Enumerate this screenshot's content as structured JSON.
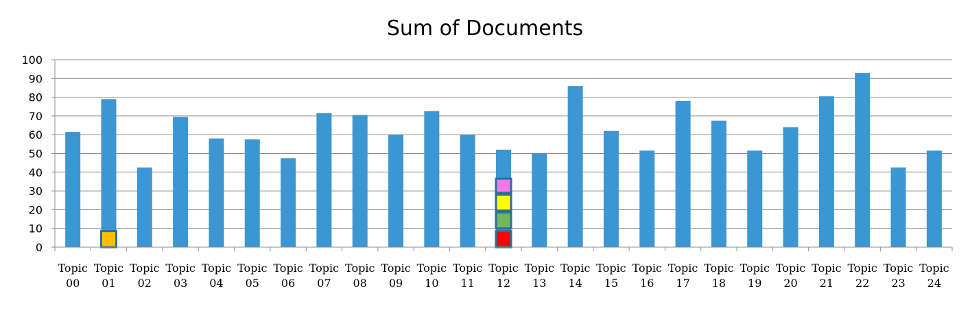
{
  "colors": {
    "bar": "#3C96D2",
    "grid": "#8C8C8C",
    "marker_border": "#2A6FA0"
  },
  "chart_data": {
    "type": "bar",
    "title": "Sum of Documents",
    "xlabel": "",
    "ylabel": "",
    "ylim": [
      0,
      100
    ],
    "yticks": [
      0,
      10,
      20,
      30,
      40,
      50,
      60,
      70,
      80,
      90,
      100
    ],
    "grid": true,
    "categories": [
      [
        "Topic",
        "00"
      ],
      [
        "Topic",
        "01"
      ],
      [
        "Topic",
        "02"
      ],
      [
        "Topic",
        "03"
      ],
      [
        "Topic",
        "04"
      ],
      [
        "Topic",
        "05"
      ],
      [
        "Topic",
        "06"
      ],
      [
        "Topic",
        "07"
      ],
      [
        "Topic",
        "08"
      ],
      [
        "Topic",
        "09"
      ],
      [
        "Topic",
        "10"
      ],
      [
        "Topic",
        "11"
      ],
      [
        "Topic",
        "12"
      ],
      [
        "Topic",
        "13"
      ],
      [
        "Topic",
        "14"
      ],
      [
        "Topic",
        "15"
      ],
      [
        "Topic",
        "16"
      ],
      [
        "Topic",
        "17"
      ],
      [
        "Topic",
        "18"
      ],
      [
        "Topic",
        "19"
      ],
      [
        "Topic",
        "20"
      ],
      [
        "Topic",
        "21"
      ],
      [
        "Topic",
        "22"
      ],
      [
        "Topic",
        "23"
      ],
      [
        "Topic",
        "24"
      ]
    ],
    "values": [
      61.5,
      79,
      42.5,
      69.5,
      58,
      57.5,
      47.5,
      71.5,
      70.5,
      60,
      72.5,
      60,
      52,
      50,
      86,
      62,
      51.5,
      78,
      67.5,
      51.5,
      64,
      80.5,
      93,
      42.5,
      51.5
    ],
    "markers": [
      {
        "category_index": 1,
        "color": "#FFC000",
        "y_min": 0,
        "y_max": 8
      },
      {
        "category_index": 12,
        "color": "#FF0000",
        "y_min": 0,
        "y_max": 8
      },
      {
        "category_index": 12,
        "color": "#70B85B",
        "y_min": 10,
        "y_max": 18
      },
      {
        "category_index": 12,
        "color": "#FFFF00",
        "y_min": 19.5,
        "y_max": 27.5
      },
      {
        "category_index": 12,
        "color": "#F07BE8",
        "y_min": 29,
        "y_max": 36
      }
    ]
  }
}
